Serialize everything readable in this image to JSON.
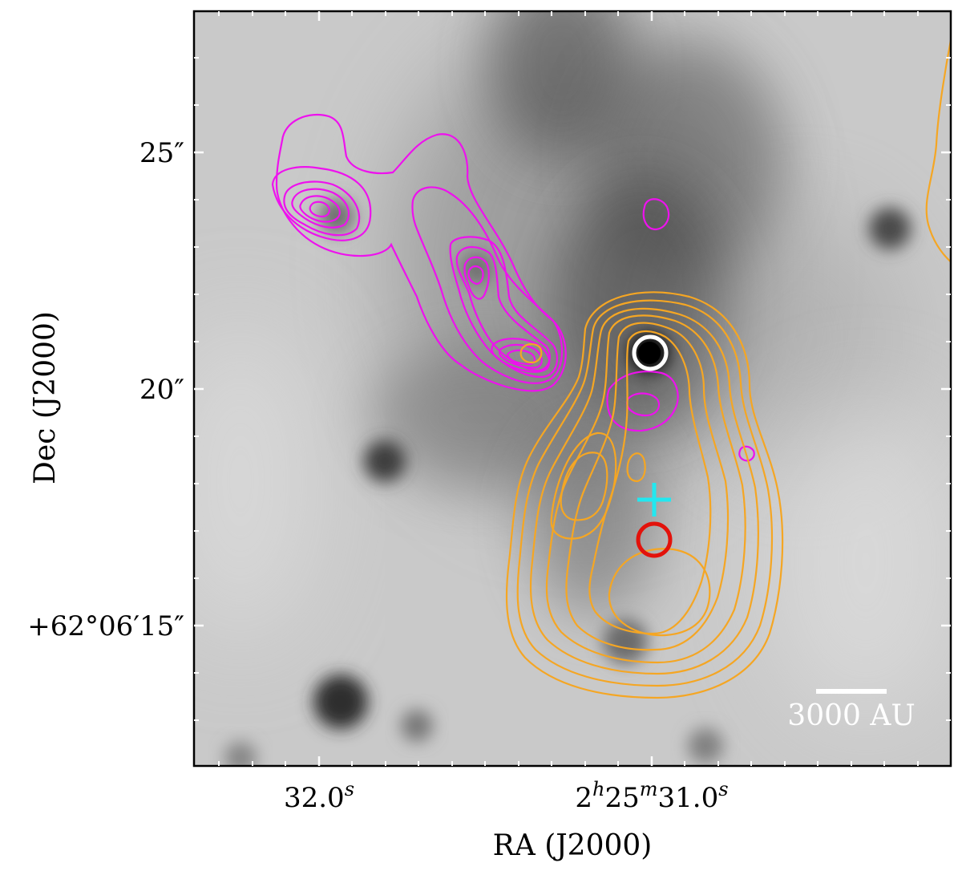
{
  "axes": {
    "xlabel": "RA (J2000)",
    "ylabel": "Dec (J2000)",
    "x_ticks": [
      {
        "main": "32.0",
        "sup": "s"
      },
      {
        "h": "2",
        "m": "25",
        "s_val": "31.0"
      }
    ],
    "y_ticks": [
      "25″",
      "20″",
      "+62°06′15″"
    ]
  },
  "scalebar": {
    "label": "3000 AU",
    "color": "#ffffff"
  },
  "colors": {
    "contour_magenta": "#ee11ee",
    "contour_orange": "#f5a623",
    "marker_white": "#ffffff",
    "marker_red": "#e3120b",
    "marker_cyan": "#22e8f0",
    "frame": "#000000"
  },
  "markers": [
    {
      "name": "white-circle-source",
      "shape": "circle"
    },
    {
      "name": "red-circle-source",
      "shape": "circle"
    },
    {
      "name": "cyan-cross-source",
      "shape": "cross"
    }
  ]
}
